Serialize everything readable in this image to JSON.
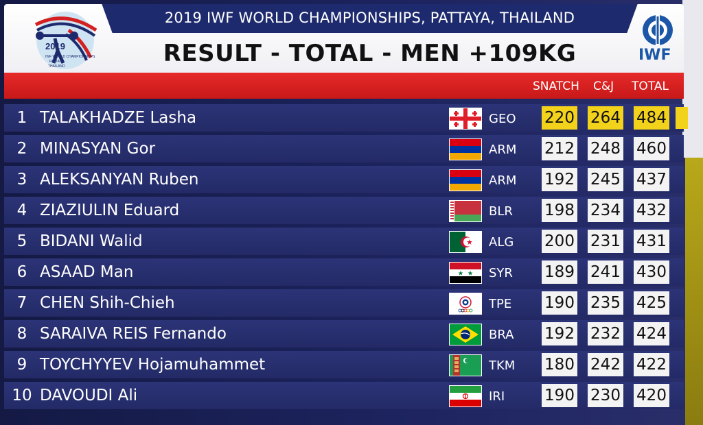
{
  "header": {
    "event_title": "2019 IWF WORLD CHAMPIONSHIPS, PATTAYA, THAILAND",
    "result_title": "RESULT - TOTAL - MEN +109KG",
    "left_logo_text": [
      "2019",
      "IWF WORLD CHAMPIONSHIPS",
      "PATTAYA",
      "THAILAND"
    ],
    "right_logo_text": "IWF"
  },
  "columns": {
    "snatch": "SNATCH",
    "cj": "C&J",
    "total": "TOTAL"
  },
  "colors": {
    "red": "#d42020",
    "gold": "#f2d21a",
    "row_bg": "#2a3275"
  },
  "rows": [
    {
      "rank": "1",
      "name": "TALAKHADZE Lasha",
      "nation": "GEO",
      "flag": "geo-flag",
      "snatch": "220",
      "cj": "264",
      "total": "484"
    },
    {
      "rank": "2",
      "name": "MINASYAN Gor",
      "nation": "ARM",
      "flag": "arm-flag",
      "snatch": "212",
      "cj": "248",
      "total": "460"
    },
    {
      "rank": "3",
      "name": "ALEKSANYAN Ruben",
      "nation": "ARM",
      "flag": "arm-flag",
      "snatch": "192",
      "cj": "245",
      "total": "437"
    },
    {
      "rank": "4",
      "name": "ZIAZIULIN Eduard",
      "nation": "BLR",
      "flag": "blr-flag",
      "snatch": "198",
      "cj": "234",
      "total": "432"
    },
    {
      "rank": "5",
      "name": "BIDANI Walid",
      "nation": "ALG",
      "flag": "alg-flag",
      "snatch": "200",
      "cj": "231",
      "total": "431"
    },
    {
      "rank": "6",
      "name": "ASAAD Man",
      "nation": "SYR",
      "flag": "syr-flag",
      "snatch": "189",
      "cj": "241",
      "total": "430"
    },
    {
      "rank": "7",
      "name": "CHEN Shih-Chieh",
      "nation": "TPE",
      "flag": "tpe-flag",
      "snatch": "190",
      "cj": "235",
      "total": "425"
    },
    {
      "rank": "8",
      "name": "SARAIVA REIS Fernando",
      "nation": "BRA",
      "flag": "bra-flag",
      "snatch": "192",
      "cj": "232",
      "total": "424"
    },
    {
      "rank": "9",
      "name": "TOYCHYYEV Hojamuhammet",
      "nation": "TKM",
      "flag": "tkm-flag",
      "snatch": "180",
      "cj": "242",
      "total": "422"
    },
    {
      "rank": "10",
      "name": "DAVOUDI Ali",
      "nation": "IRI",
      "flag": "iri-flag",
      "snatch": "190",
      "cj": "230",
      "total": "420"
    }
  ]
}
